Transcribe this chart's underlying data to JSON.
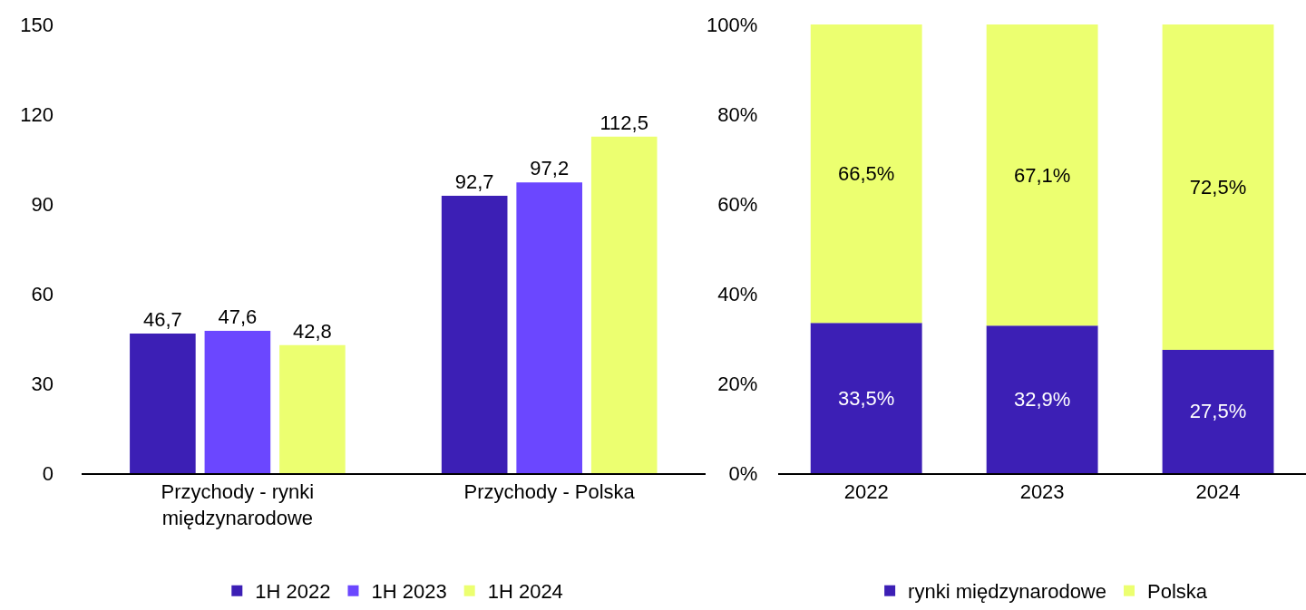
{
  "chart_data": [
    {
      "type": "bar",
      "categories": [
        "Przychody - rynki międzynarodowe",
        "Przychody - Polska"
      ],
      "series": [
        {
          "name": "1H 2022",
          "color": "#3c1fb5",
          "values": [
            46.7,
            92.7
          ],
          "value_labels": [
            "46,7",
            "92,7"
          ]
        },
        {
          "name": "1H 2023",
          "color": "#6b47ff",
          "values": [
            47.6,
            97.2
          ],
          "value_labels": [
            "47,6",
            "97,2"
          ]
        },
        {
          "name": "1H 2024",
          "color": "#ecff70",
          "values": [
            42.8,
            112.5
          ],
          "value_labels": [
            "42,8",
            "112,5"
          ]
        }
      ],
      "ylim": [
        0,
        150
      ],
      "yticks": [
        0,
        30,
        60,
        90,
        120,
        150
      ],
      "grid": false,
      "legend": "bottom"
    },
    {
      "type": "bar",
      "stacked": true,
      "categories": [
        "2022",
        "2023",
        "2024"
      ],
      "series": [
        {
          "name": "rynki międzynarodowe",
          "color": "#3c1fb5",
          "values": [
            33.5,
            32.9,
            27.5
          ],
          "value_labels": [
            "33,5%",
            "32,9%",
            "27,5%"
          ]
        },
        {
          "name": "Polska",
          "color": "#ecff70",
          "values": [
            66.5,
            67.1,
            72.5
          ],
          "value_labels": [
            "66,5%",
            "67,1%",
            "72,5%"
          ]
        }
      ],
      "ylim": [
        0,
        100
      ],
      "yticks": [
        {
          "value": 0,
          "label": "0%"
        },
        {
          "value": 20,
          "label": "20%"
        },
        {
          "value": 40,
          "label": "40%"
        },
        {
          "value": 60,
          "label": "60%"
        },
        {
          "value": 80,
          "label": "80%"
        },
        {
          "value": 100,
          "label": "100%"
        }
      ],
      "grid": false,
      "legend": "bottom"
    }
  ]
}
